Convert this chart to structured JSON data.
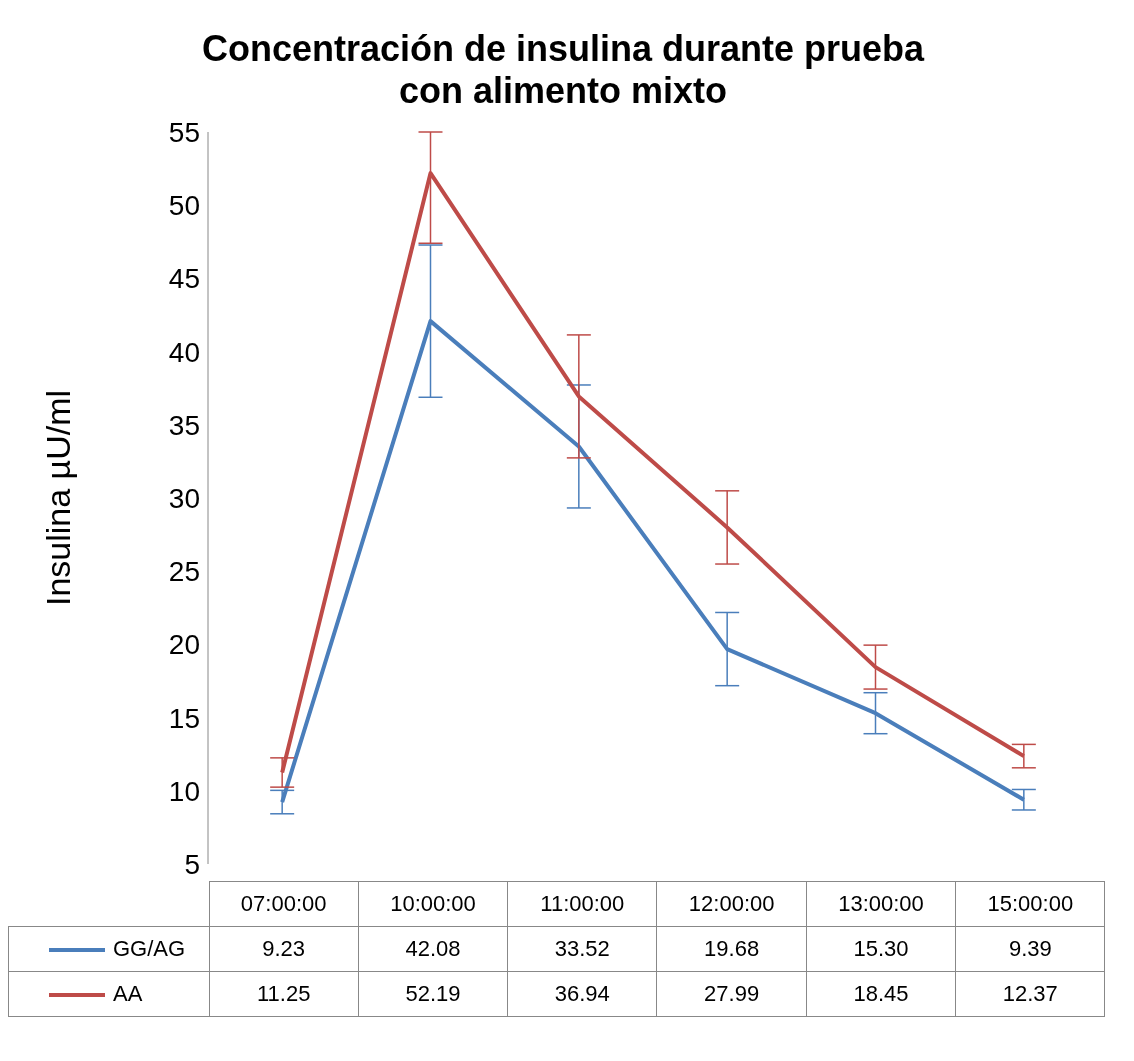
{
  "chart_data": {
    "type": "line",
    "title": "Concentración de insulina durante prueba con alimento mixto",
    "ylabel": "Insulina  µU/ml",
    "categories": [
      "07:00:00",
      "10:00:00",
      "11:00:00",
      "12:00:00",
      "13:00:00",
      "15:00:00"
    ],
    "series": [
      {
        "name": "GG/AG",
        "color": "#4a7ebb",
        "values": [
          9.23,
          42.08,
          33.52,
          19.68,
          15.3,
          9.39
        ],
        "value_labels": [
          "9.23",
          "42.08",
          "33.52",
          "19.68",
          "15.30",
          "9.39"
        ],
        "errors": [
          0.8,
          5.2,
          4.2,
          2.5,
          1.4,
          0.7
        ]
      },
      {
        "name": "AA",
        "color": "#be4b48",
        "values": [
          11.25,
          52.19,
          36.94,
          27.99,
          18.45,
          12.37
        ],
        "value_labels": [
          "11.25",
          "52.19",
          "36.94",
          "27.99",
          "18.45",
          "12.37"
        ],
        "errors": [
          1,
          [
            47.4,
            55
          ],
          4.2,
          2.5,
          1.5,
          0.8
        ]
      }
    ],
    "ylim": [
      5,
      55
    ],
    "yticks": [
      5,
      10,
      15,
      20,
      25,
      30,
      35,
      40,
      45,
      50,
      55
    ],
    "legend": "bottom",
    "marker": "none",
    "line_style": "solid"
  }
}
